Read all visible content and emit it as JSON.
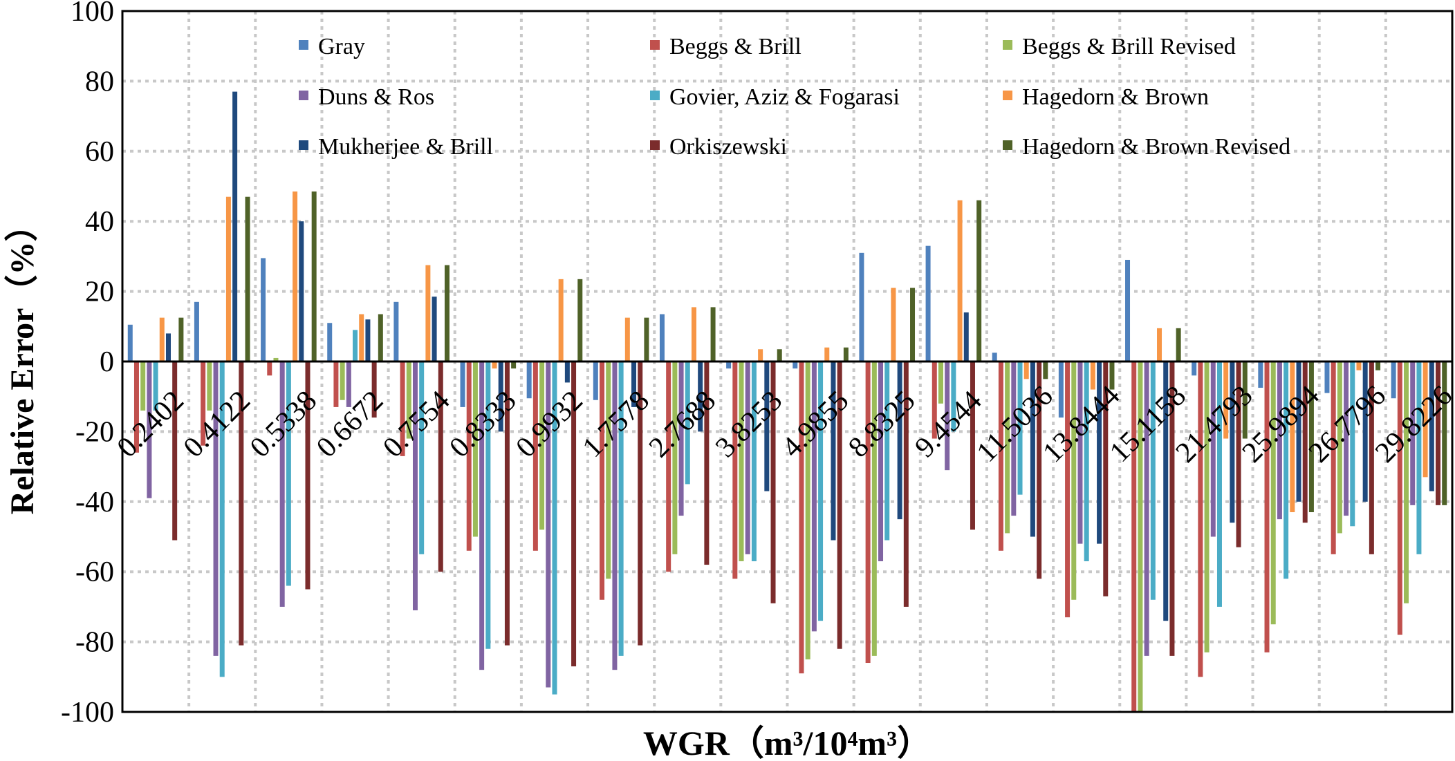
{
  "chart_data": {
    "type": "bar",
    "title": "",
    "xlabel": "WGR（m³/10⁴m³）",
    "ylabel": "Relative Error（%）",
    "ylim": [
      -100,
      100
    ],
    "yticks": [
      100,
      80,
      60,
      40,
      20,
      0,
      -20,
      -40,
      -60,
      -80,
      -100
    ],
    "grid": true,
    "legend_position": "top",
    "categories": [
      "0.2402",
      "0.4122",
      "0.5338",
      "0.6672",
      "0.7554",
      "0.8333",
      "0.9932",
      "1.7578",
      "2.7688",
      "3.8253",
      "4.9855",
      "8.8325",
      "9.4544",
      "11.5036",
      "13.8444",
      "15.1158",
      "21.4793",
      "25.9894",
      "26.7796",
      "29.8226"
    ],
    "series": [
      {
        "name": "Gray",
        "color": "#4f81bd",
        "values": [
          10.5,
          17,
          29.5,
          11,
          17,
          -13,
          -10.5,
          -11,
          13.5,
          -2,
          -2,
          31,
          33,
          2.5,
          -16,
          29,
          -4,
          -7.5,
          -9,
          -10.5
        ]
      },
      {
        "name": "Beggs & Brill",
        "color": "#c0504d",
        "values": [
          -26,
          -24,
          -4,
          -13,
          -27,
          -54,
          -54,
          -68,
          -60,
          -62,
          -89,
          -86,
          -22,
          -54,
          -73,
          -100,
          -90,
          -83,
          -55,
          -78
        ]
      },
      {
        "name": "Beggs & Brill Revised",
        "color": "#9bbb59",
        "values": [
          -14,
          -14,
          1,
          -11,
          -22,
          -50,
          -48,
          -62,
          -55,
          -57,
          -85,
          -84,
          -12,
          -49,
          -68,
          -100,
          -83,
          -75,
          -49,
          -69
        ]
      },
      {
        "name": "Duns & Ros",
        "color": "#8064a2",
        "values": [
          -39,
          -84,
          -70,
          -13,
          -71,
          -88,
          -93,
          -88,
          -44,
          -55,
          -77,
          -57,
          -31,
          -44,
          -52,
          -84,
          -50,
          -45,
          -44,
          -41
        ]
      },
      {
        "name": "Govier, Aziz & Fogarasi",
        "color": "#4bacc6",
        "values": [
          -14,
          -90,
          -64,
          9,
          -55,
          -82,
          -95,
          -84,
          -35,
          -57,
          -74,
          -51,
          -20,
          -38,
          -57,
          -68,
          -70,
          -62,
          -47,
          -55
        ]
      },
      {
        "name": "Hagedorn & Brown",
        "color": "#f79646",
        "values": [
          12.5,
          47,
          48.5,
          13.5,
          27.5,
          -2,
          23.5,
          12.5,
          15.5,
          3.5,
          4,
          21,
          46,
          -5,
          -8,
          9.5,
          -22,
          -43,
          -2.5,
          -33
        ]
      },
      {
        "name": "Mukherjee & Brill",
        "color": "#1f497d",
        "values": [
          8,
          77,
          40,
          12,
          18.5,
          -20,
          -6,
          -13,
          -20,
          -37,
          -51,
          -45,
          14,
          -50,
          -52,
          -74,
          -46,
          -40,
          -40,
          -37
        ]
      },
      {
        "name": "Orkiszewski",
        "color": "#7b2c2c",
        "values": [
          -51,
          -81,
          -65,
          -16,
          -60,
          -81,
          -87,
          -81,
          -58,
          -69,
          -82,
          -70,
          -48,
          -62,
          -67,
          -84,
          -53,
          -46,
          -55,
          -41
        ]
      },
      {
        "name": "Hagedorn & Brown Revised",
        "color": "#4f6228",
        "values": [
          12.5,
          47,
          48.5,
          13.5,
          27.5,
          -2,
          23.5,
          12.5,
          15.5,
          3.5,
          4,
          21,
          46,
          -5,
          -8,
          9.5,
          -22,
          -43,
          -2.5,
          -41
        ]
      }
    ]
  }
}
